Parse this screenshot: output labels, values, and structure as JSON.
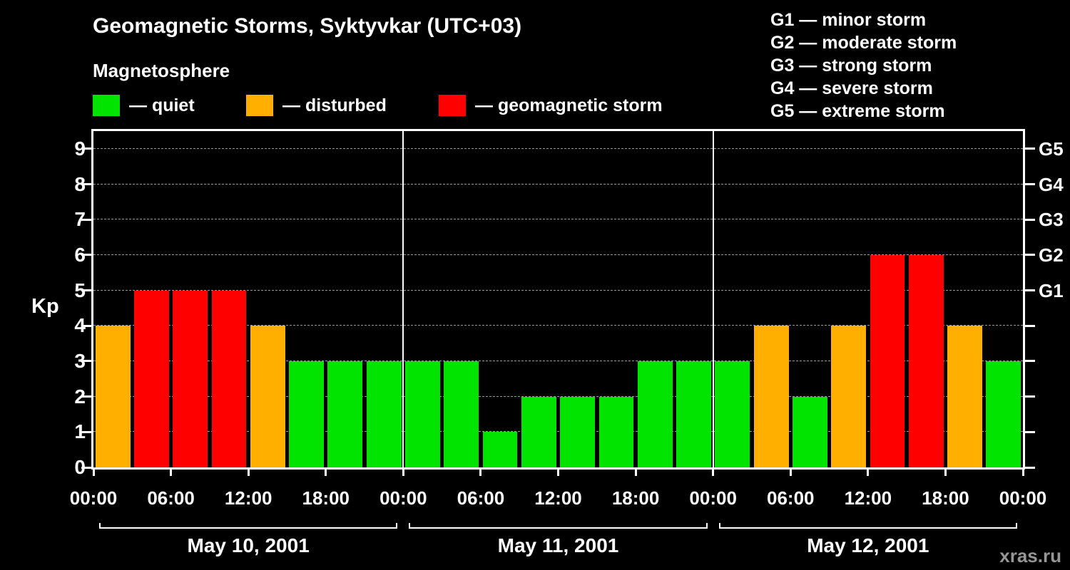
{
  "header": {
    "title": "Geomagnetic Storms, Syktyvkar (UTC+03)",
    "subtitle": "Magnetosphere"
  },
  "legend": {
    "items": [
      {
        "name": "quiet",
        "label": "— quiet",
        "color": "#00e400"
      },
      {
        "name": "disturbed",
        "label": "— disturbed",
        "color": "#ffaf00"
      },
      {
        "name": "storm",
        "label": "— geomagnetic storm",
        "color": "#ff0000"
      }
    ]
  },
  "g_scale_legend": {
    "items": [
      "G1 — minor storm",
      "G2 — moderate storm",
      "G3 — strong storm",
      "G4 — severe storm",
      "G5 — extreme storm"
    ]
  },
  "watermark": "xras.ru",
  "chart_data": {
    "type": "bar",
    "title": "Geomagnetic Storms, Syktyvkar (UTC+03)",
    "ylabel": "Kp",
    "ylim": [
      0,
      9.5
    ],
    "yticks": [
      0,
      1,
      2,
      3,
      4,
      5,
      6,
      7,
      8,
      9
    ],
    "right_axis": [
      {
        "value": 5,
        "label": "G1"
      },
      {
        "value": 6,
        "label": "G2"
      },
      {
        "value": 7,
        "label": "G3"
      },
      {
        "value": 8,
        "label": "G4"
      },
      {
        "value": 9,
        "label": "G5"
      }
    ],
    "x_tick_labels": [
      "00:00",
      "06:00",
      "12:00",
      "18:00"
    ],
    "closing_x_tick_label": "00:00",
    "bar_interval_hours": 3,
    "days": [
      {
        "date": "May 10, 2001",
        "values": [
          4,
          5,
          5,
          5,
          4,
          3,
          3,
          3
        ]
      },
      {
        "date": "May 11, 2001",
        "values": [
          3,
          3,
          1,
          2,
          2,
          2,
          3,
          3
        ]
      },
      {
        "date": "May 12, 2001",
        "values": [
          3,
          4,
          2,
          4,
          6,
          6,
          4,
          3
        ]
      }
    ],
    "color_thresholds": {
      "quiet_max": 3,
      "disturbed_max": 4
    },
    "colors": {
      "quiet": "#00e400",
      "disturbed": "#ffaf00",
      "storm": "#ff0000",
      "axis": "#ffffff",
      "grid": "#999999",
      "background": "#000000",
      "text": "#ffffff",
      "watermark": "#969696"
    }
  }
}
